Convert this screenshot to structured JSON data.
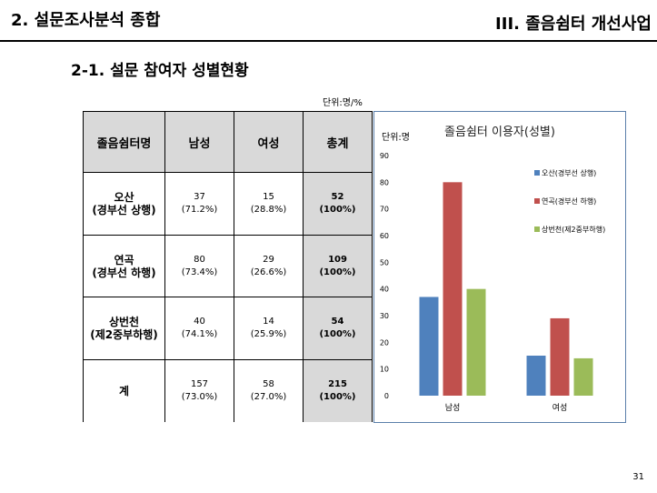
{
  "header": {
    "left_title": "2. 설문조사분석 종합",
    "right_title": "III. 졸음쉼터 개선사업"
  },
  "subtitle": "2-1. 설문 참여자 성별현황",
  "unit_label": "단위:명/%",
  "table": {
    "headers": [
      "졸음쉼터명",
      "남성",
      "여성",
      "총계"
    ],
    "rows": [
      {
        "name": [
          "오산",
          "(경부선 상행)"
        ],
        "male": [
          "37",
          "(71.2%)"
        ],
        "female": [
          "15",
          "(28.8%)"
        ],
        "total": [
          "52",
          "(100%)"
        ]
      },
      {
        "name": [
          "연곡",
          "(경부선 하행)"
        ],
        "male": [
          "80",
          "(73.4%)"
        ],
        "female": [
          "29",
          "(26.6%)"
        ],
        "total": [
          "109",
          "(100%)"
        ]
      },
      {
        "name": [
          "상번천",
          "(제2중부하행)"
        ],
        "male": [
          "40",
          "(74.1%)"
        ],
        "female": [
          "14",
          "(25.9%)"
        ],
        "total": [
          "54",
          "(100%)"
        ]
      },
      {
        "name": [
          "계"
        ],
        "male": [
          "157",
          "(73.0%)"
        ],
        "female": [
          "58",
          "(27.0%)"
        ],
        "total": [
          "215",
          "(100%)"
        ]
      }
    ]
  },
  "chart_data": {
    "type": "bar",
    "title": "졸음쉼터 이용자(성별)",
    "ylabel": "단위:명",
    "categories": [
      "남성",
      "여성"
    ],
    "series": [
      {
        "name": "오산(경부선 상행)",
        "values": [
          37,
          15
        ],
        "color": "#4f81bd"
      },
      {
        "name": "연곡(경부선 하행)",
        "values": [
          80,
          29
        ],
        "color": "#c0504d"
      },
      {
        "name": "상번천(제2중부하행)",
        "values": [
          40,
          14
        ],
        "color": "#9bbb59"
      }
    ],
    "ylim": [
      0,
      90
    ],
    "yticks": [
      0,
      10,
      20,
      30,
      40,
      50,
      60,
      70,
      80,
      90
    ],
    "grid": false,
    "legend": "right"
  },
  "page_number": "31"
}
